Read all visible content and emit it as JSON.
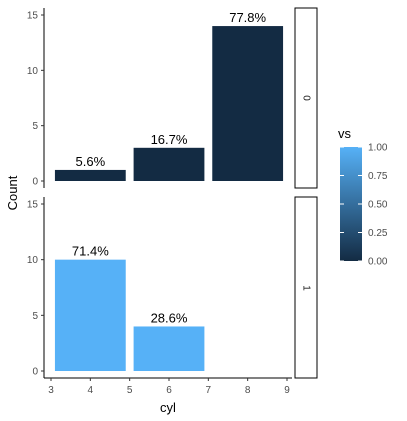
{
  "chart_data": {
    "type": "bar",
    "xlabel": "cyl",
    "ylabel": "Count",
    "xlim": [
      3,
      9
    ],
    "xticks": [
      3,
      4,
      5,
      6,
      7,
      8,
      9
    ],
    "ylim": [
      0,
      15
    ],
    "yticks": [
      0,
      5,
      10,
      15
    ],
    "bar_width": 1.8,
    "facets": [
      {
        "strip": "0",
        "fill_value": 0,
        "bars": [
          {
            "x": 4,
            "count": 1,
            "label": "5.6%"
          },
          {
            "x": 6,
            "count": 3,
            "label": "16.7%"
          },
          {
            "x": 8,
            "count": 14,
            "label": "77.8%"
          }
        ]
      },
      {
        "strip": "1",
        "fill_value": 1,
        "bars": [
          {
            "x": 4,
            "count": 10,
            "label": "71.4%"
          },
          {
            "x": 6,
            "count": 4,
            "label": "28.6%"
          }
        ]
      }
    ],
    "legend": {
      "title": "vs",
      "labels": [
        "1.00",
        "0.75",
        "0.50",
        "0.25",
        "0.00"
      ],
      "values": [
        1.0,
        0.75,
        0.5,
        0.25,
        0.0
      ],
      "position": "right"
    },
    "colors": {
      "low": "#132B43",
      "high": "#56B1F7"
    },
    "grid": false
  }
}
